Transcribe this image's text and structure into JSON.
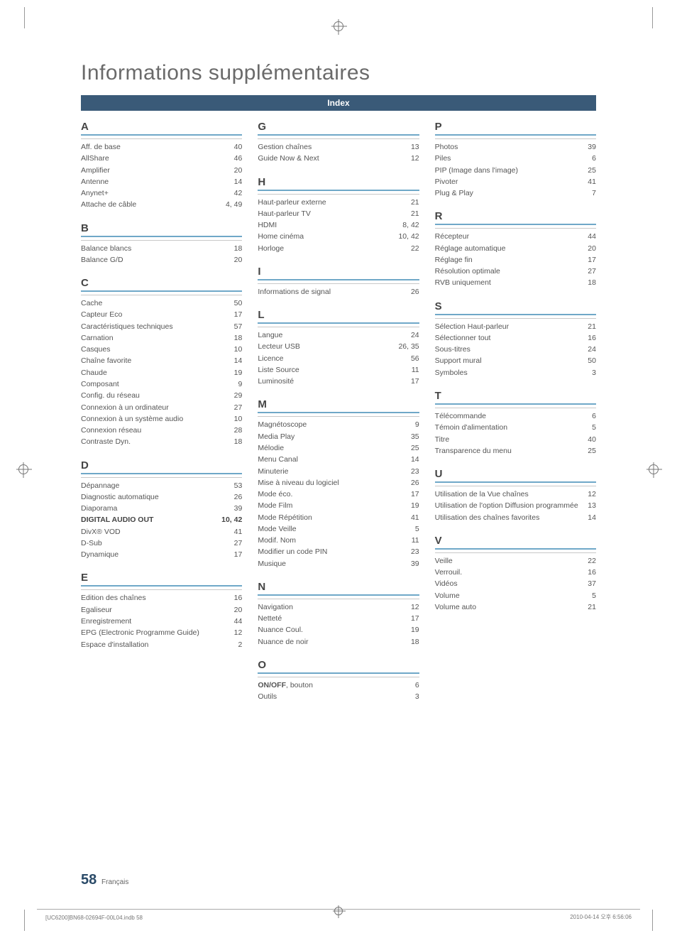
{
  "title": "Informations supplémentaires",
  "index_label": "Index",
  "page_number": "58",
  "page_lang": "Français",
  "footer_left": "[UC6200]BN68-02694F-00L04.indb   58",
  "footer_right": "2010-04-14   오후 6:56:06",
  "columns": [
    [
      {
        "letter": "A",
        "entries": [
          {
            "label": "Aff. de base",
            "pages": "40"
          },
          {
            "label": "AllShare",
            "pages": "46"
          },
          {
            "label": "Amplifier",
            "pages": "20"
          },
          {
            "label": "Antenne",
            "pages": "14"
          },
          {
            "label": "Anynet+",
            "pages": "42"
          },
          {
            "label": "Attache de câble",
            "pages": "4, 49"
          }
        ]
      },
      {
        "letter": "B",
        "entries": [
          {
            "label": "Balance blancs",
            "pages": "18"
          },
          {
            "label": "Balance G/D",
            "pages": "20"
          }
        ]
      },
      {
        "letter": "C",
        "entries": [
          {
            "label": "Cache",
            "pages": "50"
          },
          {
            "label": "Capteur Eco",
            "pages": "17"
          },
          {
            "label": "Caractéristiques techniques",
            "pages": "57"
          },
          {
            "label": "Carnation",
            "pages": "18"
          },
          {
            "label": "Casques",
            "pages": "10"
          },
          {
            "label": "Chaîne favorite",
            "pages": "14"
          },
          {
            "label": "Chaude",
            "pages": "19"
          },
          {
            "label": "Composant",
            "pages": "9"
          },
          {
            "label": "Config. du réseau",
            "pages": "29"
          },
          {
            "label": "Connexion à un ordinateur",
            "pages": "27"
          },
          {
            "label": "Connexion à un système audio",
            "pages": "10"
          },
          {
            "label": "Connexion réseau",
            "pages": "28"
          },
          {
            "label": "Contraste Dyn.",
            "pages": "18"
          }
        ]
      },
      {
        "letter": "D",
        "entries": [
          {
            "label": "Dépannage",
            "pages": "53"
          },
          {
            "label": "Diagnostic automatique",
            "pages": "26"
          },
          {
            "label": "Diaporama",
            "pages": "39"
          },
          {
            "label": "DIGITAL AUDIO OUT",
            "pages": "10, 42",
            "bold": true
          },
          {
            "label": "DivX® VOD",
            "pages": "41"
          },
          {
            "label": "D-Sub",
            "pages": "27"
          },
          {
            "label": "Dynamique",
            "pages": "17"
          }
        ]
      },
      {
        "letter": "E",
        "entries": [
          {
            "label": "Edition des chaînes",
            "pages": "16"
          },
          {
            "label": "Egaliseur",
            "pages": "20"
          },
          {
            "label": "Enregistrement",
            "pages": "44"
          },
          {
            "label": "EPG (Electronic Programme Guide)",
            "pages": "12"
          },
          {
            "label": "Espace d'installation",
            "pages": "2"
          }
        ]
      }
    ],
    [
      {
        "letter": "G",
        "entries": [
          {
            "label": "Gestion chaînes",
            "pages": "13"
          },
          {
            "label": "Guide Now & Next",
            "pages": "12"
          }
        ]
      },
      {
        "letter": "H",
        "entries": [
          {
            "label": "Haut-parleur externe",
            "pages": "21"
          },
          {
            "label": "Haut-parleur TV",
            "pages": "21"
          },
          {
            "label": "HDMI",
            "pages": "8, 42"
          },
          {
            "label": "Home cinéma",
            "pages": "10, 42"
          },
          {
            "label": "Horloge",
            "pages": "22"
          }
        ]
      },
      {
        "letter": "I",
        "entries": [
          {
            "label": "Informations de signal",
            "pages": "26"
          }
        ]
      },
      {
        "letter": "L",
        "entries": [
          {
            "label": "Langue",
            "pages": "24"
          },
          {
            "label": "Lecteur USB",
            "pages": "26, 35"
          },
          {
            "label": "Licence",
            "pages": "56"
          },
          {
            "label": "Liste Source",
            "pages": "11"
          },
          {
            "label": "Luminosité",
            "pages": "17"
          }
        ]
      },
      {
        "letter": "M",
        "entries": [
          {
            "label": "Magnétoscope",
            "pages": "9"
          },
          {
            "label": "Media Play",
            "pages": "35"
          },
          {
            "label": "Mélodie",
            "pages": "25"
          },
          {
            "label": "Menu Canal",
            "pages": "14"
          },
          {
            "label": "Minuterie",
            "pages": "23"
          },
          {
            "label": "Mise à niveau du logiciel",
            "pages": "26"
          },
          {
            "label": "Mode éco.",
            "pages": "17"
          },
          {
            "label": "Mode Film",
            "pages": "19"
          },
          {
            "label": "Mode Répétition",
            "pages": "41"
          },
          {
            "label": "Mode Veille",
            "pages": "5"
          },
          {
            "label": "Modif. Nom",
            "pages": "11"
          },
          {
            "label": "Modifier un code PIN",
            "pages": "23"
          },
          {
            "label": "Musique",
            "pages": "39"
          }
        ]
      },
      {
        "letter": "N",
        "entries": [
          {
            "label": "Navigation",
            "pages": "12"
          },
          {
            "label": "Netteté",
            "pages": "17"
          },
          {
            "label": "Nuance Coul.",
            "pages": "19"
          },
          {
            "label": "Nuance de noir",
            "pages": "18"
          }
        ]
      },
      {
        "letter": "O",
        "entries": [
          {
            "label": "ON/OFF, bouton",
            "pages": "6",
            "bold_prefix": "ON/OFF"
          },
          {
            "label": "Outils",
            "pages": "3"
          }
        ]
      }
    ],
    [
      {
        "letter": "P",
        "entries": [
          {
            "label": "Photos",
            "pages": "39"
          },
          {
            "label": "Piles",
            "pages": "6"
          },
          {
            "label": "PIP (Image dans l'image)",
            "pages": "25"
          },
          {
            "label": "Pivoter",
            "pages": "41"
          },
          {
            "label": "Plug & Play",
            "pages": "7"
          }
        ]
      },
      {
        "letter": "R",
        "entries": [
          {
            "label": "Récepteur",
            "pages": "44"
          },
          {
            "label": "Réglage automatique",
            "pages": "20"
          },
          {
            "label": "Réglage fin",
            "pages": "17"
          },
          {
            "label": "Résolution optimale",
            "pages": "27"
          },
          {
            "label": "RVB uniquement",
            "pages": "18"
          }
        ]
      },
      {
        "letter": "S",
        "entries": [
          {
            "label": "Sélection Haut-parleur",
            "pages": "21"
          },
          {
            "label": "Sélectionner tout",
            "pages": "16"
          },
          {
            "label": "Sous-titres",
            "pages": "24"
          },
          {
            "label": "Support mural",
            "pages": "50"
          },
          {
            "label": "Symboles",
            "pages": "3"
          }
        ]
      },
      {
        "letter": "T",
        "entries": [
          {
            "label": "Télécommande",
            "pages": "6"
          },
          {
            "label": "Témoin d'alimentation",
            "pages": "5"
          },
          {
            "label": "Titre",
            "pages": "40"
          },
          {
            "label": "Transparence du menu",
            "pages": "25"
          }
        ]
      },
      {
        "letter": "U",
        "entries": [
          {
            "label": "Utilisation de la Vue chaînes",
            "pages": "12"
          },
          {
            "label": "Utilisation de l'option Diffusion programmée",
            "pages": "13"
          },
          {
            "label": "Utilisation des chaînes favorites",
            "pages": "14"
          }
        ]
      },
      {
        "letter": "V",
        "entries": [
          {
            "label": "Veille",
            "pages": "22"
          },
          {
            "label": "Verrouil.",
            "pages": "16"
          },
          {
            "label": "Vidéos",
            "pages": "37"
          },
          {
            "label": "Volume",
            "pages": "5"
          },
          {
            "label": "Volume auto",
            "pages": "21"
          }
        ]
      }
    ]
  ]
}
